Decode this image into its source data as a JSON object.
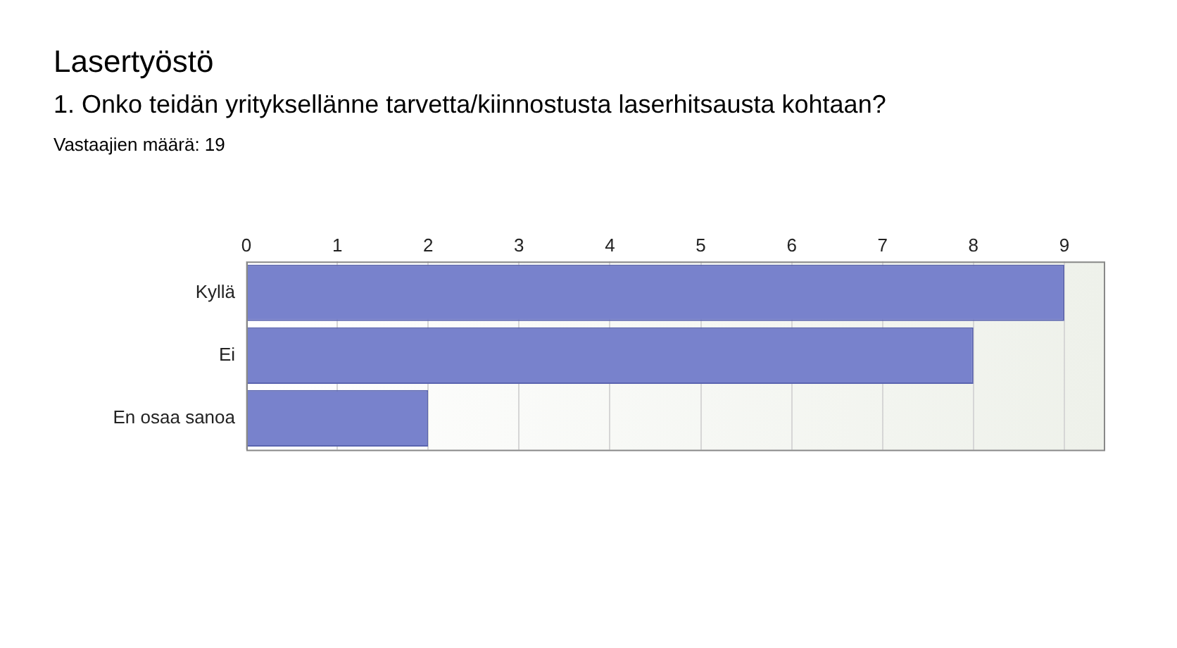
{
  "chart_data": {
    "type": "bar",
    "title": "Lasertyöstö",
    "subtitle": "1. Onko teidän yrityksellänne tarvetta/kiinnostusta laserhitsausta kohtaan?",
    "annotations": [
      "Vastaajien määrä: 19"
    ],
    "orientation": "horizontal",
    "categories": [
      "Kyllä",
      "Ei",
      "En osaa sanoa"
    ],
    "values": [
      9,
      8,
      2
    ],
    "color": "#7882cc",
    "xlim": [
      0,
      9.45
    ],
    "xticks": [
      0,
      1,
      2,
      3,
      4,
      5,
      6,
      7,
      8,
      9
    ],
    "grid": "x",
    "legend": false
  }
}
